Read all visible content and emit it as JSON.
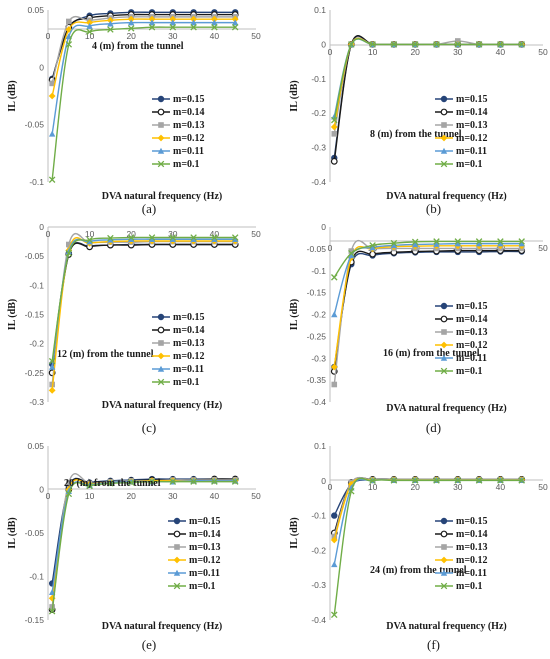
{
  "chart_data": [
    {
      "type": "scatter",
      "panel_label": "(a)",
      "annotation": "4 (m) from the tunnel",
      "xlabel": "DVA natural frequency (Hz)",
      "ylabel": "IL (dB)",
      "xlim": [
        0,
        50
      ],
      "ylim": [
        -0.1,
        0.05
      ],
      "xticks": [
        10,
        20,
        30,
        40,
        50
      ],
      "yticks": [
        0.05,
        0,
        -0.05,
        -0.1
      ],
      "ytick_labels": [
        "0.05",
        "0",
        "-0.05",
        "-0.1"
      ],
      "x": [
        1,
        5,
        10,
        15,
        20,
        25,
        30,
        35,
        40,
        45
      ],
      "series": [
        {
          "name": "m=0.15",
          "color": "#264478",
          "marker": "circle",
          "values": [
            -0.01,
            0.034,
            0.045,
            0.047,
            0.048,
            0.048,
            0.048,
            0.048,
            0.048,
            0.048
          ]
        },
        {
          "name": "m=0.14",
          "color": "#1a1a1a",
          "marker": "circle-open",
          "values": [
            -0.011,
            0.035,
            0.043,
            0.045,
            0.046,
            0.046,
            0.046,
            0.046,
            0.046,
            0.046
          ]
        },
        {
          "name": "m=0.13",
          "color": "#a5a5a5",
          "marker": "square",
          "values": [
            -0.014,
            0.04,
            0.041,
            0.043,
            0.044,
            0.044,
            0.044,
            0.044,
            0.044,
            0.044
          ]
        },
        {
          "name": "m=0.12",
          "color": "#ffc000",
          "marker": "diamond",
          "values": [
            -0.025,
            0.033,
            0.039,
            0.041,
            0.042,
            0.042,
            0.042,
            0.042,
            0.042,
            0.042
          ]
        },
        {
          "name": "m=0.11",
          "color": "#5b9bd5",
          "marker": "triangle",
          "values": [
            -0.058,
            0.027,
            0.036,
            0.038,
            0.039,
            0.039,
            0.039,
            0.039,
            0.039,
            0.039
          ]
        },
        {
          "name": "m=0.1",
          "color": "#70ad47",
          "marker": "x",
          "values": [
            -0.098,
            0.02,
            0.031,
            0.033,
            0.034,
            0.035,
            0.035,
            0.035,
            0.035,
            0.035
          ]
        }
      ]
    },
    {
      "type": "scatter",
      "panel_label": "(b)",
      "annotation": "8 (m) from the tunnel",
      "xlabel": "DVA natural frequency (Hz)",
      "ylabel": "IL (dB)",
      "xlim": [
        0,
        50
      ],
      "ylim": [
        -0.4,
        0.1
      ],
      "xticks": [
        10,
        20,
        30,
        40,
        50
      ],
      "yticks": [
        0.1,
        0,
        -0.1,
        -0.2,
        -0.3,
        -0.4
      ],
      "ytick_labels": [
        "0.1",
        "0",
        "-0.1",
        "-0.2",
        "-0.3",
        "-0.4"
      ],
      "x": [
        1,
        5,
        10,
        15,
        20,
        25,
        30,
        35,
        40,
        45
      ],
      "series": [
        {
          "name": "m=0.15",
          "color": "#264478",
          "marker": "circle",
          "values": [
            -0.33,
            0.0,
            0.0,
            0.0,
            0.0,
            0.0,
            0.0,
            0.0,
            0.0,
            0.0
          ]
        },
        {
          "name": "m=0.14",
          "color": "#1a1a1a",
          "marker": "circle-open",
          "values": [
            -0.34,
            0.0,
            0.0,
            0.0,
            0.0,
            0.0,
            0.0,
            0.0,
            0.0,
            0.0
          ]
        },
        {
          "name": "m=0.13",
          "color": "#a5a5a5",
          "marker": "square",
          "values": [
            -0.26,
            0.0,
            0.0,
            0.0,
            0.0,
            0.0,
            0.01,
            0.0,
            0.0,
            0.0
          ]
        },
        {
          "name": "m=0.12",
          "color": "#ffc000",
          "marker": "diamond",
          "values": [
            -0.24,
            0.0,
            0.0,
            0.0,
            0.0,
            0.0,
            0.0,
            0.0,
            0.0,
            0.0
          ]
        },
        {
          "name": "m=0.11",
          "color": "#5b9bd5",
          "marker": "triangle",
          "values": [
            -0.21,
            0.0,
            0.0,
            0.0,
            0.0,
            0.0,
            0.0,
            0.0,
            0.0,
            0.0
          ]
        },
        {
          "name": "m=0.1",
          "color": "#70ad47",
          "marker": "x",
          "values": [
            -0.22,
            0.0,
            0.0,
            0.0,
            0.0,
            0.0,
            0.0,
            0.0,
            0.0,
            0.0
          ]
        }
      ]
    },
    {
      "type": "scatter",
      "panel_label": "(c)",
      "annotation": "12 (m) from the tunnel",
      "xlabel": "DVA natural frequency (Hz)",
      "ylabel": "IL (dB)",
      "xlim": [
        0,
        50
      ],
      "ylim": [
        -0.3,
        0
      ],
      "xticks": [
        10,
        20,
        30,
        40,
        50
      ],
      "yticks": [
        0,
        -0.05,
        -0.1,
        -0.15,
        -0.2,
        -0.25,
        -0.3
      ],
      "ytick_labels": [
        "0",
        "-0.05",
        "-0.1",
        "-0.15",
        "-0.2",
        "-0.25",
        "-0.3"
      ],
      "x": [
        1,
        5,
        10,
        15,
        20,
        25,
        30,
        35,
        40,
        45
      ],
      "series": [
        {
          "name": "m=0.15",
          "color": "#264478",
          "marker": "circle",
          "values": [
            -0.235,
            -0.045,
            -0.033,
            -0.031,
            -0.03,
            -0.03,
            -0.03,
            -0.03,
            -0.03,
            -0.03
          ]
        },
        {
          "name": "m=0.14",
          "color": "#1a1a1a",
          "marker": "circle-open",
          "values": [
            -0.25,
            -0.047,
            -0.034,
            -0.031,
            -0.031,
            -0.03,
            -0.03,
            -0.03,
            -0.03,
            -0.03
          ]
        },
        {
          "name": "m=0.13",
          "color": "#a5a5a5",
          "marker": "square",
          "values": [
            -0.27,
            -0.03,
            -0.027,
            -0.026,
            -0.026,
            -0.025,
            -0.025,
            -0.025,
            -0.025,
            -0.025
          ]
        },
        {
          "name": "m=0.12",
          "color": "#ffc000",
          "marker": "diamond",
          "values": [
            -0.28,
            -0.04,
            -0.028,
            -0.025,
            -0.024,
            -0.024,
            -0.024,
            -0.024,
            -0.024,
            -0.024
          ]
        },
        {
          "name": "m=0.11",
          "color": "#5b9bd5",
          "marker": "triangle",
          "values": [
            -0.24,
            -0.042,
            -0.025,
            -0.022,
            -0.021,
            -0.021,
            -0.021,
            -0.021,
            -0.021,
            -0.021
          ]
        },
        {
          "name": "m=0.1",
          "color": "#70ad47",
          "marker": "x",
          "values": [
            -0.23,
            -0.045,
            -0.022,
            -0.019,
            -0.018,
            -0.018,
            -0.018,
            -0.018,
            -0.018,
            -0.018
          ]
        }
      ]
    },
    {
      "type": "scatter",
      "panel_label": "(d)",
      "annotation": "16 (m) from the tunnel",
      "xlabel": "DVA natural frequency (Hz)",
      "ylabel": "IL (dB)",
      "xlim": [
        0,
        50
      ],
      "ylim": [
        -0.4,
        0
      ],
      "xticks": [
        10,
        20,
        30,
        40,
        50
      ],
      "yticks": [
        0,
        -0.05,
        -0.1,
        -0.15,
        -0.2,
        -0.25,
        -0.3,
        -0.35,
        -0.4
      ],
      "ytick_labels": [
        "0",
        "-0.05",
        "-0.1",
        "-0.15",
        "-0.2",
        "-0.25",
        "-0.3",
        "-0.35",
        "-0.4"
      ],
      "x": [
        1,
        5,
        10,
        15,
        20,
        25,
        30,
        35,
        40,
        45
      ],
      "series": [
        {
          "name": "m=0.15",
          "color": "#264478",
          "marker": "circle",
          "values": [
            -0.32,
            -0.085,
            -0.065,
            -0.06,
            -0.058,
            -0.057,
            -0.057,
            -0.057,
            -0.056,
            -0.056
          ]
        },
        {
          "name": "m=0.14",
          "color": "#1a1a1a",
          "marker": "circle-open",
          "values": [
            -0.33,
            -0.08,
            -0.062,
            -0.058,
            -0.056,
            -0.055,
            -0.054,
            -0.054,
            -0.054,
            -0.054
          ]
        },
        {
          "name": "m=0.13",
          "color": "#a5a5a5",
          "marker": "square",
          "values": [
            -0.36,
            -0.055,
            -0.05,
            -0.049,
            -0.049,
            -0.049,
            -0.049,
            -0.049,
            -0.049,
            -0.049
          ]
        },
        {
          "name": "m=0.12",
          "color": "#ffc000",
          "marker": "diamond",
          "values": [
            -0.32,
            -0.07,
            -0.05,
            -0.045,
            -0.044,
            -0.043,
            -0.043,
            -0.043,
            -0.043,
            -0.043
          ]
        },
        {
          "name": "m=0.11",
          "color": "#5b9bd5",
          "marker": "triangle",
          "values": [
            -0.2,
            -0.065,
            -0.047,
            -0.042,
            -0.04,
            -0.039,
            -0.038,
            -0.038,
            -0.038,
            -0.038
          ]
        },
        {
          "name": "m=0.1",
          "color": "#70ad47",
          "marker": "x",
          "values": [
            -0.115,
            -0.06,
            -0.042,
            -0.037,
            -0.034,
            -0.033,
            -0.033,
            -0.033,
            -0.033,
            -0.033
          ]
        }
      ]
    },
    {
      "type": "scatter",
      "panel_label": "(e)",
      "annotation": "20 (m) from the tunnel",
      "xlabel": "DVA natural frequency (Hz)",
      "ylabel": "IL (dB)",
      "xlim": [
        0,
        50
      ],
      "ylim": [
        -0.15,
        0.05
      ],
      "xticks": [
        10,
        20,
        30,
        40,
        50
      ],
      "yticks": [
        0.05,
        0,
        -0.05,
        -0.1,
        -0.15
      ],
      "ytick_labels": [
        "0.05",
        "0",
        "-0.05",
        "-0.1",
        "-0.15"
      ],
      "x": [
        1,
        5,
        10,
        15,
        20,
        25,
        30,
        35,
        40,
        45
      ],
      "series": [
        {
          "name": "m=0.15",
          "color": "#264478",
          "marker": "circle",
          "values": [
            -0.108,
            0.003,
            0.008,
            0.01,
            0.011,
            0.012,
            0.012,
            0.012,
            0.012,
            0.012
          ]
        },
        {
          "name": "m=0.14",
          "color": "#1a1a1a",
          "marker": "circle-open",
          "values": [
            -0.138,
            0.0,
            0.007,
            0.009,
            0.01,
            0.011,
            0.011,
            0.011,
            0.012,
            0.012
          ]
        },
        {
          "name": "m=0.13",
          "color": "#a5a5a5",
          "marker": "square",
          "values": [
            -0.135,
            0.008,
            0.007,
            0.009,
            0.01,
            0.01,
            0.011,
            0.011,
            0.011,
            0.011
          ]
        },
        {
          "name": "m=0.12",
          "color": "#ffc000",
          "marker": "diamond",
          "values": [
            -0.125,
            0.0,
            0.006,
            0.008,
            0.009,
            0.01,
            0.01,
            0.01,
            0.01,
            0.01
          ]
        },
        {
          "name": "m=0.11",
          "color": "#5b9bd5",
          "marker": "triangle",
          "values": [
            -0.118,
            -0.002,
            0.005,
            0.008,
            0.009,
            0.009,
            0.009,
            0.01,
            0.01,
            0.01
          ]
        },
        {
          "name": "m=0.1",
          "color": "#70ad47",
          "marker": "x",
          "values": [
            -0.14,
            -0.005,
            0.004,
            0.007,
            0.008,
            0.009,
            0.009,
            0.009,
            0.009,
            0.009
          ]
        }
      ]
    },
    {
      "type": "scatter",
      "panel_label": "(f)",
      "annotation": "24 (m) from the tunnel",
      "xlabel": "DVA natural frequency (Hz)",
      "ylabel": "IL (dB)",
      "xlim": [
        0,
        50
      ],
      "ylim": [
        -0.4,
        0.1
      ],
      "xticks": [
        10,
        20,
        30,
        40,
        50
      ],
      "yticks": [
        0.1,
        0,
        -0.1,
        -0.2,
        -0.3,
        -0.4
      ],
      "ytick_labels": [
        "0.1",
        "0",
        "-0.1",
        "-0.2",
        "-0.3",
        "-0.4"
      ],
      "x": [
        1,
        5,
        10,
        15,
        20,
        25,
        30,
        35,
        40,
        45
      ],
      "series": [
        {
          "name": "m=0.15",
          "color": "#264478",
          "marker": "circle",
          "values": [
            -0.1,
            -0.01,
            0.003,
            0.003,
            0.003,
            0.003,
            0.003,
            0.003,
            0.003,
            0.003
          ]
        },
        {
          "name": "m=0.14",
          "color": "#1a1a1a",
          "marker": "circle-open",
          "values": [
            -0.15,
            -0.005,
            0.004,
            0.004,
            0.004,
            0.004,
            0.004,
            0.004,
            0.004,
            0.004
          ]
        },
        {
          "name": "m=0.13",
          "color": "#a5a5a5",
          "marker": "square",
          "values": [
            -0.16,
            -0.005,
            0.003,
            0.003,
            0.003,
            0.003,
            0.003,
            0.003,
            0.003,
            0.003
          ]
        },
        {
          "name": "m=0.12",
          "color": "#ffc000",
          "marker": "diamond",
          "values": [
            -0.17,
            -0.01,
            0.002,
            0.003,
            0.003,
            0.003,
            0.003,
            0.003,
            0.003,
            0.003
          ]
        },
        {
          "name": "m=0.11",
          "color": "#5b9bd5",
          "marker": "triangle",
          "values": [
            -0.24,
            -0.02,
            0.001,
            0.002,
            0.002,
            0.002,
            0.002,
            0.002,
            0.002,
            0.002
          ]
        },
        {
          "name": "m=0.1",
          "color": "#70ad47",
          "marker": "x",
          "values": [
            -0.385,
            -0.03,
            0.0,
            0.001,
            0.001,
            0.001,
            0.001,
            0.001,
            0.001,
            0.001
          ]
        }
      ]
    }
  ]
}
